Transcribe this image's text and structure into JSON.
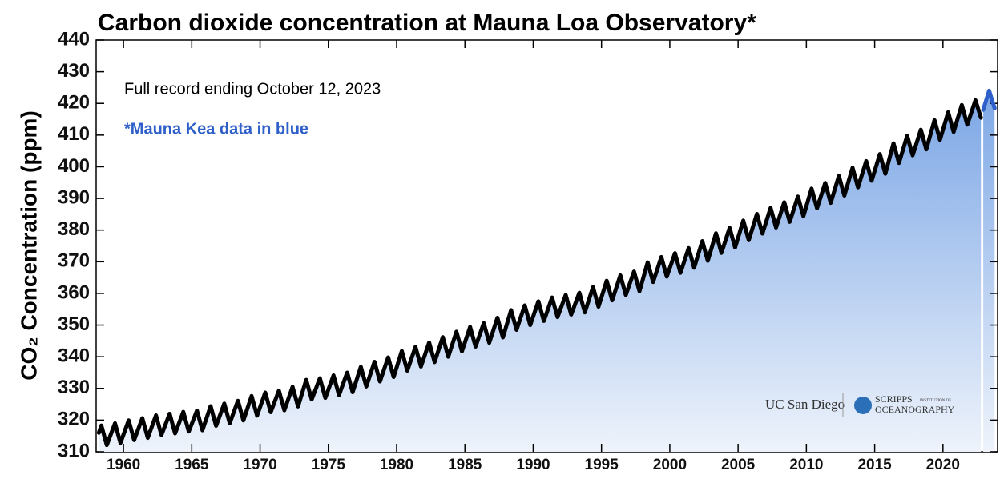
{
  "chart_data": {
    "type": "line",
    "title": "Carbon dioxide concentration at Mauna Loa Observatory*",
    "y_label": "CO₂ Concentration (ppm)",
    "annotations": [
      "Full record ending October 12, 2023",
      "*Mauna Kea data in blue"
    ],
    "xlim": [
      1958,
      2024
    ],
    "xticks": [
      1960,
      1965,
      1970,
      1975,
      1980,
      1985,
      1990,
      1995,
      2000,
      2005,
      2010,
      2015,
      2020
    ],
    "ylim": [
      310,
      440
    ],
    "yticks": [
      310,
      320,
      330,
      340,
      350,
      360,
      370,
      380,
      390,
      400,
      410,
      420,
      430,
      440
    ],
    "series": [
      {
        "color": "#000000",
        "x": [
          1958.2,
          1958.38,
          1958.78,
          1959.38,
          1959.78,
          1960.38,
          1960.78,
          1961.38,
          1961.78,
          1962.38,
          1962.78,
          1963.38,
          1963.78,
          1964.38,
          1964.78,
          1965.38,
          1965.78,
          1966.38,
          1966.78,
          1967.38,
          1967.78,
          1968.38,
          1968.78,
          1969.38,
          1969.78,
          1970.38,
          1970.78,
          1971.38,
          1971.78,
          1972.38,
          1972.78,
          1973.38,
          1973.78,
          1974.38,
          1974.78,
          1975.38,
          1975.78,
          1976.38,
          1976.78,
          1977.38,
          1977.78,
          1978.38,
          1978.78,
          1979.38,
          1979.78,
          1980.38,
          1980.78,
          1981.38,
          1981.78,
          1982.38,
          1982.78,
          1983.38,
          1983.78,
          1984.38,
          1984.78,
          1985.38,
          1985.78,
          1986.38,
          1986.78,
          1987.38,
          1987.78,
          1988.38,
          1988.78,
          1989.38,
          1989.78,
          1990.38,
          1990.78,
          1991.38,
          1991.78,
          1992.38,
          1992.78,
          1993.38,
          1993.78,
          1994.38,
          1994.78,
          1995.38,
          1995.78,
          1996.38,
          1996.78,
          1997.38,
          1997.78,
          1998.38,
          1998.78,
          1999.38,
          1999.78,
          2000.38,
          2000.78,
          2001.38,
          2001.78,
          2002.38,
          2002.78,
          2003.38,
          2003.78,
          2004.38,
          2004.78,
          2005.38,
          2005.78,
          2006.38,
          2006.78,
          2007.38,
          2007.78,
          2008.38,
          2008.78,
          2009.38,
          2009.78,
          2010.38,
          2010.78,
          2011.38,
          2011.78,
          2012.38,
          2012.78,
          2013.38,
          2013.78,
          2014.38,
          2014.78,
          2015.38,
          2015.78,
          2016.38,
          2016.78,
          2017.38,
          2017.78,
          2018.38,
          2018.78,
          2019.38,
          2019.78,
          2020.38,
          2020.78,
          2021.38,
          2021.78,
          2022.38,
          2022.78
        ],
        "values": [
          316.0,
          318.3,
          312.1,
          319.0,
          312.8,
          319.9,
          313.7,
          320.6,
          314.4,
          321.5,
          315.3,
          322.0,
          315.8,
          322.6,
          316.4,
          323.0,
          316.8,
          324.4,
          318.2,
          325.2,
          319.0,
          326.1,
          319.9,
          327.6,
          321.4,
          328.7,
          322.5,
          329.3,
          323.1,
          330.5,
          324.3,
          332.7,
          326.5,
          333.2,
          327.0,
          334.1,
          327.9,
          335.0,
          328.8,
          336.8,
          330.6,
          338.4,
          332.2,
          339.8,
          333.6,
          341.8,
          335.6,
          343.1,
          336.9,
          344.5,
          338.3,
          346.2,
          340.0,
          347.9,
          341.7,
          349.4,
          343.2,
          350.6,
          344.4,
          352.3,
          346.1,
          354.7,
          348.5,
          356.2,
          350.0,
          357.5,
          351.3,
          358.7,
          352.5,
          359.5,
          353.3,
          360.2,
          354.0,
          362.0,
          355.8,
          364.0,
          357.8,
          365.7,
          359.5,
          366.9,
          360.7,
          369.8,
          363.6,
          371.5,
          365.3,
          372.7,
          366.5,
          374.3,
          368.1,
          376.5,
          370.3,
          379.0,
          372.8,
          380.7,
          374.5,
          383.0,
          376.8,
          385.1,
          378.9,
          387.0,
          380.8,
          388.8,
          382.6,
          390.6,
          384.4,
          393.1,
          386.9,
          394.9,
          388.6,
          397.1,
          390.9,
          399.7,
          393.5,
          401.8,
          395.6,
          404.0,
          397.8,
          407.4,
          401.2,
          409.8,
          403.6,
          411.7,
          405.5,
          414.7,
          408.5,
          417.2,
          411.0,
          419.5,
          413.3,
          421.0,
          415.5
        ]
      },
      {
        "color": "#2f5fc8",
        "x": [
          2022.95,
          2023.38,
          2023.78
        ],
        "values": [
          418.0,
          424.0,
          418.5
        ]
      }
    ]
  },
  "logos": {
    "ucsd": "UC San Diego",
    "scripps": "SCRIPPS",
    "scripps_sub": "INSTITUTION OF",
    "oceanography": "OCEANOGRAPHY"
  }
}
